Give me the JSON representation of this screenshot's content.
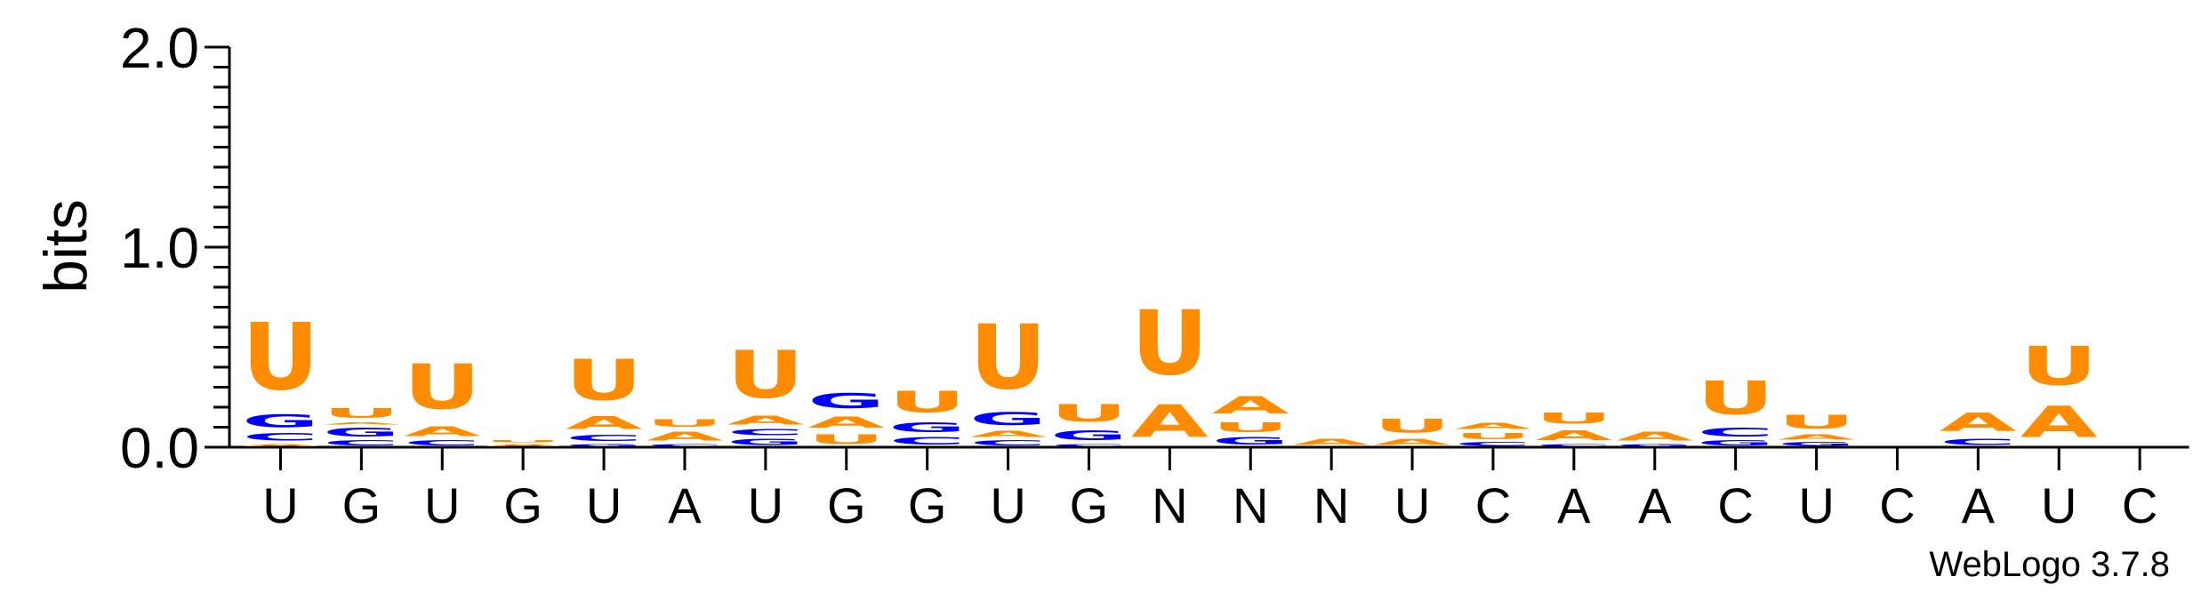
{
  "chart_data": {
    "type": "sequence_logo",
    "title": "",
    "xlabel": "",
    "ylabel": "bits",
    "ylim": [
      0,
      2.0
    ],
    "yticks": [
      "0.0",
      "1.0",
      "2.0"
    ],
    "x_tick_labels": [
      "U",
      "G",
      "U",
      "G",
      "U",
      "A",
      "U",
      "G",
      "G",
      "U",
      "G",
      "N",
      "N",
      "N",
      "U",
      "C",
      "A",
      "A",
      "C",
      "U",
      "C",
      "A",
      "U",
      "C"
    ],
    "colors": {
      "A": "#ff8c00",
      "U": "#ff8c00",
      "G": "#0000ff",
      "C": "#0000ff"
    },
    "positions": [
      [
        [
          "A",
          0.02
        ],
        [
          "C",
          0.06
        ],
        [
          "G",
          0.1
        ],
        [
          "U",
          0.54
        ]
      ],
      [
        [
          "C",
          0.04
        ],
        [
          "G",
          0.07
        ],
        [
          "A",
          0.02
        ],
        [
          "U",
          0.08
        ]
      ],
      [
        [
          "C",
          0.04
        ],
        [
          "A",
          0.08
        ],
        [
          "U",
          0.36
        ]
      ],
      [
        [
          "A",
          0.02
        ],
        [
          "U",
          0.02
        ]
      ],
      [
        [
          "G",
          0.02
        ],
        [
          "C",
          0.05
        ],
        [
          "A",
          0.1
        ],
        [
          "U",
          0.33
        ]
      ],
      [
        [
          "C",
          0.02
        ],
        [
          "A",
          0.07
        ],
        [
          "U",
          0.06
        ]
      ],
      [
        [
          "G",
          0.05
        ],
        [
          "C",
          0.05
        ],
        [
          "A",
          0.07
        ],
        [
          "U",
          0.38
        ]
      ],
      [
        [
          "U",
          0.08
        ],
        [
          "A",
          0.09
        ],
        [
          "G",
          0.12
        ]
      ],
      [
        [
          "C",
          0.06
        ],
        [
          "G",
          0.08
        ],
        [
          "U",
          0.17
        ]
      ],
      [
        [
          "C",
          0.04
        ],
        [
          "A",
          0.05
        ],
        [
          "G",
          0.1
        ],
        [
          "U",
          0.52
        ]
      ],
      [
        [
          "C",
          0.02
        ],
        [
          "G",
          0.08
        ],
        [
          "U",
          0.14
        ]
      ],
      [
        [
          "A",
          0.26
        ],
        [
          "U",
          0.52
        ]
      ],
      [
        [
          "G",
          0.06
        ],
        [
          "U",
          0.08
        ],
        [
          "A",
          0.14
        ]
      ],
      [
        [
          "A",
          0.05
        ]
      ],
      [
        [
          "A",
          0.05
        ],
        [
          "U",
          0.11
        ]
      ],
      [
        [
          "C",
          0.03
        ],
        [
          "U",
          0.05
        ],
        [
          "A",
          0.05
        ]
      ],
      [
        [
          "C",
          0.02
        ],
        [
          "A",
          0.08
        ],
        [
          "U",
          0.09
        ]
      ],
      [
        [
          "G",
          0.02
        ],
        [
          "A",
          0.07
        ]
      ],
      [
        [
          "G",
          0.04
        ],
        [
          "C",
          0.07
        ],
        [
          "U",
          0.27
        ]
      ],
      [
        [
          "G",
          0.03
        ],
        [
          "A",
          0.04
        ],
        [
          "U",
          0.11
        ]
      ],
      [],
      [
        [
          "C",
          0.05
        ],
        [
          "A",
          0.15
        ]
      ],
      [
        [
          "A",
          0.25
        ],
        [
          "U",
          0.31
        ]
      ],
      []
    ]
  },
  "branding": "WebLogo 3.7.8"
}
